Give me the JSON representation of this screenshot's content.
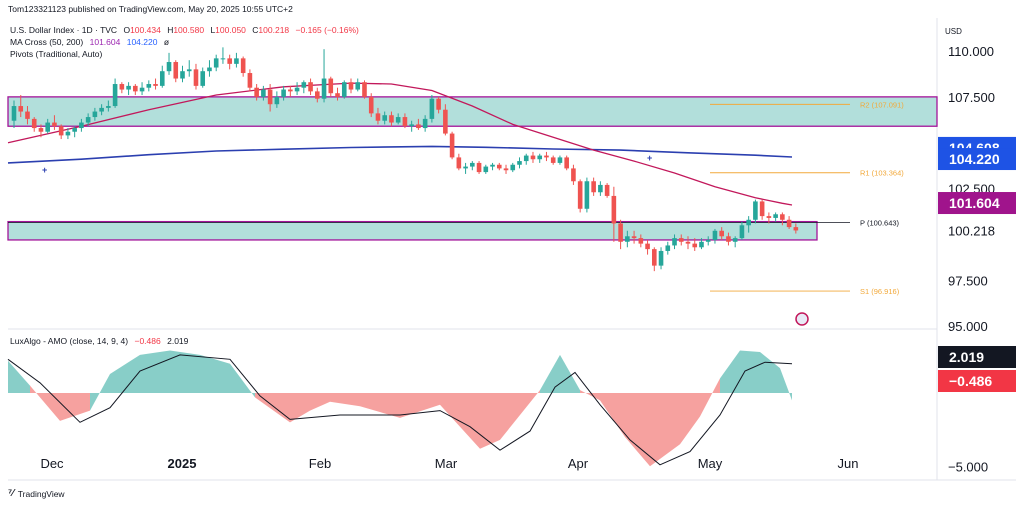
{
  "publisher_line": "Tom123321123 published on TradingView.com, May 20, 2025 10:55 UTC+2",
  "legend": {
    "symbol": "U.S. Dollar Index · 1D · TVC",
    "ohlc": {
      "o_label": "O",
      "o": "100.434",
      "h_label": "H",
      "h": "100.580",
      "l_label": "L",
      "l": "100.050",
      "c_label": "C",
      "c": "100.218",
      "change": "−0.165 (−0.16%)"
    },
    "ma_cross": {
      "label": "MA Cross (50, 200)",
      "v1": "101.604",
      "v2": "104.220",
      "suffix": "ø"
    },
    "pivots": "Pivots (Traditional, Auto)",
    "luxalgo": {
      "label": "LuxAlgo - AMO (close, 14, 9, 4)",
      "v1": "−0.486",
      "v2": "2.019"
    }
  },
  "currency": "USD",
  "footer_brand": "TradingView",
  "colors": {
    "up": "#26a69a",
    "down": "#ef5350",
    "ma50": "#c2185b",
    "ma200": "#2b3fb0",
    "zone_fill": "#b2dfdb",
    "zone_border": "#a3149a",
    "pivot_line": "#f2a93b",
    "label_ma50": "#a0148c",
    "label_ma200": "#1e53e5",
    "label_dark": "#131722",
    "label_neg": "#f23645"
  },
  "chart_data": {
    "type": "candlestick",
    "title": "U.S. Dollar Index · 1D · TVC",
    "y_axis": {
      "ticks": [
        110,
        107.5,
        105,
        102.5,
        100,
        97.5,
        95
      ],
      "tick_labels": [
        "110.000",
        "107.500",
        "102.500",
        "97.500",
        "95.000"
      ],
      "range": [
        94.9,
        111.8
      ]
    },
    "x_axis": {
      "labels": [
        "Dec",
        "2025",
        "Feb",
        "Mar",
        "Apr",
        "May",
        "Jun"
      ]
    },
    "price_labels": {
      "r_upper": "104.608",
      "ma200": "104.220",
      "ma50": "101.604",
      "last": "100.218"
    },
    "pivots": [
      {
        "name": "R2",
        "label": "R2 (107.091)",
        "value": 107.091
      },
      {
        "name": "R1",
        "label": "R1 (103.364)",
        "value": 103.364
      },
      {
        "name": "P",
        "label": "P (100.643)",
        "value": 100.643
      },
      {
        "name": "S1",
        "label": "S1 (96.916)",
        "value": 96.916
      }
    ],
    "zones": [
      [
        105.9,
        107.5
      ],
      [
        99.7,
        100.7
      ]
    ],
    "candles": [
      [
        106.2,
        107.3,
        105.8,
        107.0
      ],
      [
        107.0,
        107.6,
        106.4,
        106.7
      ],
      [
        106.7,
        107.0,
        106.0,
        106.3
      ],
      [
        106.3,
        106.4,
        105.6,
        105.8
      ],
      [
        105.8,
        106.0,
        105.3,
        105.6
      ],
      [
        105.6,
        106.3,
        105.5,
        106.1
      ],
      [
        106.1,
        106.5,
        105.7,
        105.9
      ],
      [
        105.9,
        106.0,
        105.2,
        105.4
      ],
      [
        105.4,
        105.8,
        105.2,
        105.6
      ],
      [
        105.6,
        105.9,
        105.3,
        105.8
      ],
      [
        105.8,
        106.3,
        105.6,
        106.1
      ],
      [
        106.1,
        106.6,
        105.9,
        106.4
      ],
      [
        106.4,
        106.9,
        106.2,
        106.7
      ],
      [
        106.7,
        107.1,
        106.5,
        106.9
      ],
      [
        106.9,
        107.3,
        106.7,
        107.0
      ],
      [
        107.0,
        108.5,
        106.9,
        108.2
      ],
      [
        108.2,
        108.3,
        107.7,
        107.9
      ],
      [
        107.9,
        108.3,
        107.6,
        108.1
      ],
      [
        108.1,
        108.2,
        107.6,
        107.8
      ],
      [
        107.8,
        108.3,
        107.6,
        108.0
      ],
      [
        108.0,
        108.4,
        107.8,
        108.2
      ],
      [
        108.2,
        108.5,
        107.9,
        108.1
      ],
      [
        108.1,
        109.2,
        108.0,
        108.9
      ],
      [
        108.9,
        109.9,
        108.7,
        109.4
      ],
      [
        109.4,
        109.5,
        108.3,
        108.5
      ],
      [
        108.5,
        109.2,
        108.3,
        108.9
      ],
      [
        108.9,
        109.5,
        108.6,
        109.0
      ],
      [
        109.0,
        109.3,
        107.9,
        108.1
      ],
      [
        108.1,
        109.1,
        108.0,
        108.9
      ],
      [
        108.9,
        109.5,
        108.6,
        109.1
      ],
      [
        109.1,
        109.8,
        108.9,
        109.6
      ],
      [
        109.6,
        110.2,
        109.3,
        109.6
      ],
      [
        109.6,
        109.8,
        109.0,
        109.3
      ],
      [
        109.3,
        109.9,
        109.1,
        109.6
      ],
      [
        109.6,
        109.7,
        108.6,
        108.8
      ],
      [
        108.8,
        109.0,
        107.8,
        108.0
      ],
      [
        108.0,
        108.2,
        107.3,
        107.5
      ],
      [
        107.5,
        108.1,
        107.3,
        107.9
      ],
      [
        107.9,
        108.2,
        106.7,
        107.1
      ],
      [
        107.1,
        107.8,
        106.9,
        107.5
      ],
      [
        107.5,
        108.1,
        107.3,
        107.9
      ],
      [
        107.9,
        108.1,
        107.5,
        107.8
      ],
      [
        107.8,
        108.3,
        107.6,
        108.0
      ],
      [
        108.0,
        108.4,
        107.7,
        108.3
      ],
      [
        108.3,
        108.5,
        107.6,
        107.8
      ],
      [
        107.8,
        108.0,
        107.2,
        107.4
      ],
      [
        107.4,
        110.1,
        107.2,
        108.5
      ],
      [
        108.5,
        108.6,
        107.5,
        107.7
      ],
      [
        107.7,
        108.0,
        107.3,
        107.5
      ],
      [
        107.5,
        108.4,
        107.4,
        108.3
      ],
      [
        108.3,
        108.5,
        107.7,
        107.9
      ],
      [
        107.9,
        108.5,
        107.8,
        108.3
      ],
      [
        108.3,
        108.4,
        107.4,
        107.5
      ],
      [
        107.5,
        107.7,
        106.4,
        106.6
      ],
      [
        106.6,
        106.9,
        106.0,
        106.2
      ],
      [
        106.2,
        106.7,
        106.0,
        106.5
      ],
      [
        106.5,
        106.7,
        105.9,
        106.1
      ],
      [
        106.1,
        106.6,
        106.0,
        106.4
      ],
      [
        106.4,
        106.6,
        105.8,
        105.9
      ],
      [
        105.9,
        106.2,
        105.6,
        106.0
      ],
      [
        106.0,
        106.3,
        105.7,
        105.8
      ],
      [
        105.8,
        106.5,
        105.6,
        106.3
      ],
      [
        106.3,
        107.6,
        106.1,
        107.4
      ],
      [
        107.4,
        107.5,
        106.6,
        106.8
      ],
      [
        106.8,
        107.1,
        105.4,
        105.5
      ],
      [
        105.5,
        105.6,
        104.1,
        104.2
      ],
      [
        104.2,
        104.4,
        103.5,
        103.6
      ],
      [
        103.6,
        103.9,
        103.3,
        103.7
      ],
      [
        103.7,
        104.0,
        103.5,
        103.9
      ],
      [
        103.9,
        104.0,
        103.3,
        103.4
      ],
      [
        103.4,
        103.8,
        103.3,
        103.7
      ],
      [
        103.7,
        103.9,
        103.5,
        103.8
      ],
      [
        103.8,
        103.9,
        103.5,
        103.6
      ],
      [
        103.6,
        103.8,
        103.3,
        103.5
      ],
      [
        103.5,
        103.9,
        103.4,
        103.8
      ],
      [
        103.8,
        104.2,
        103.6,
        104.0
      ],
      [
        104.0,
        104.4,
        103.8,
        104.3
      ],
      [
        104.3,
        104.5,
        103.9,
        104.1
      ],
      [
        104.1,
        104.4,
        103.9,
        104.3
      ],
      [
        104.3,
        104.5,
        104.0,
        104.2
      ],
      [
        104.2,
        104.3,
        103.8,
        103.9
      ],
      [
        103.9,
        104.3,
        103.8,
        104.2
      ],
      [
        104.2,
        104.3,
        103.5,
        103.6
      ],
      [
        103.6,
        103.8,
        102.7,
        102.9
      ],
      [
        102.9,
        103.0,
        101.2,
        101.4
      ],
      [
        101.4,
        103.1,
        101.2,
        102.9
      ],
      [
        102.9,
        103.1,
        102.1,
        102.3
      ],
      [
        102.3,
        102.9,
        102.1,
        102.7
      ],
      [
        102.7,
        102.8,
        102.0,
        102.1
      ],
      [
        102.1,
        102.6,
        99.6,
        100.6
      ],
      [
        100.6,
        100.8,
        99.2,
        99.6
      ],
      [
        99.6,
        100.2,
        99.3,
        99.9
      ],
      [
        99.9,
        100.2,
        99.5,
        99.8
      ],
      [
        99.8,
        100.0,
        99.3,
        99.5
      ],
      [
        99.5,
        99.7,
        98.9,
        99.2
      ],
      [
        99.2,
        99.3,
        98.0,
        98.3
      ],
      [
        98.3,
        99.3,
        98.1,
        99.1
      ],
      [
        99.1,
        99.6,
        98.9,
        99.4
      ],
      [
        99.4,
        100.0,
        99.2,
        99.8
      ],
      [
        99.8,
        100.0,
        99.4,
        99.6
      ],
      [
        99.6,
        99.9,
        99.2,
        99.5
      ],
      [
        99.5,
        99.8,
        99.1,
        99.3
      ],
      [
        99.3,
        99.8,
        99.2,
        99.6
      ],
      [
        99.6,
        99.9,
        99.4,
        99.7
      ],
      [
        99.7,
        100.3,
        99.5,
        100.2
      ],
      [
        100.2,
        100.4,
        99.7,
        99.9
      ],
      [
        99.9,
        100.1,
        99.4,
        99.6
      ],
      [
        99.6,
        99.9,
        99.3,
        99.8
      ],
      [
        99.8,
        100.7,
        99.7,
        100.5
      ],
      [
        100.5,
        101.0,
        100.1,
        100.8
      ],
      [
        100.8,
        101.9,
        100.6,
        101.8
      ],
      [
        101.8,
        101.9,
        100.8,
        101.0
      ],
      [
        101.0,
        101.2,
        100.6,
        100.9
      ],
      [
        100.9,
        101.2,
        100.7,
        101.1
      ],
      [
        101.1,
        101.2,
        100.5,
        100.8
      ],
      [
        100.8,
        101.0,
        100.3,
        100.4
      ],
      [
        100.4,
        100.6,
        100.05,
        100.218
      ]
    ],
    "ma50": [
      [
        0,
        105.0
      ],
      [
        10,
        105.9
      ],
      [
        20,
        106.8
      ],
      [
        30,
        107.6
      ],
      [
        40,
        108.05
      ],
      [
        50,
        108.25
      ],
      [
        56,
        108.2
      ],
      [
        62,
        107.85
      ],
      [
        68,
        107.0
      ],
      [
        74,
        106.0
      ],
      [
        80,
        105.3
      ],
      [
        86,
        104.6
      ],
      [
        92,
        104.0
      ],
      [
        98,
        103.35
      ],
      [
        104,
        102.6
      ],
      [
        110,
        102.0
      ],
      [
        114,
        101.7
      ],
      [
        116,
        101.604
      ]
    ],
    "ma200": [
      [
        0,
        103.9
      ],
      [
        10,
        104.1
      ],
      [
        20,
        104.35
      ],
      [
        30,
        104.55
      ],
      [
        40,
        104.65
      ],
      [
        50,
        104.74
      ],
      [
        62,
        104.8
      ],
      [
        70,
        104.75
      ],
      [
        80,
        104.66
      ],
      [
        90,
        104.6
      ],
      [
        100,
        104.45
      ],
      [
        110,
        104.32
      ],
      [
        116,
        104.22
      ]
    ],
    "amo": {
      "y_ticks": [
        "-5.000"
      ],
      "y_range": [
        -5.8,
        4.3
      ],
      "labels": {
        "signal": "2.019",
        "amo": "−0.486"
      }
    }
  }
}
